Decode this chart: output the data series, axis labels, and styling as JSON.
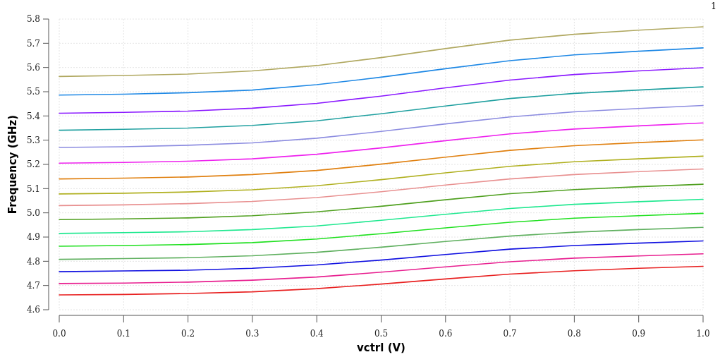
{
  "chart_data": {
    "type": "line",
    "xlabel": "vctrl  (V)",
    "ylabel": "Frequency  (GHz)",
    "annotations": [
      "1"
    ],
    "x": [
      0,
      0.1,
      0.2,
      0.3,
      0.4,
      0.5,
      0.6,
      0.7,
      0.8,
      0.9,
      1.0
    ],
    "xlim": [
      0,
      1
    ],
    "xticks": [
      {
        "value": 0,
        "label": "0.0"
      },
      0.1,
      0.2,
      0.3,
      0.4,
      0.5,
      0.6,
      0.7,
      0.8,
      0.9,
      {
        "value": 1,
        "label": "1.0"
      }
    ],
    "ylim": [
      4.6,
      5.8
    ],
    "yticks": [
      4.6,
      4.7,
      4.8,
      4.9,
      {
        "value": 5,
        "label": "5.0"
      },
      5.1,
      5.2,
      5.3,
      5.4,
      5.5,
      5.6,
      5.7,
      5.8
    ],
    "grid": true,
    "line_style": "solid",
    "series": [
      {
        "color": "#b0a860",
        "values": [
          5.563,
          5.567,
          5.573,
          5.586,
          5.608,
          5.641,
          5.678,
          5.713,
          5.737,
          5.754,
          5.768
        ]
      },
      {
        "color": "#1e88e5",
        "values": [
          5.486,
          5.49,
          5.496,
          5.507,
          5.529,
          5.56,
          5.595,
          5.628,
          5.652,
          5.667,
          5.681
        ]
      },
      {
        "color": "#8b1aff",
        "values": [
          5.411,
          5.415,
          5.42,
          5.432,
          5.452,
          5.482,
          5.516,
          5.548,
          5.571,
          5.586,
          5.599
        ]
      },
      {
        "color": "#20a0a0",
        "values": [
          5.341,
          5.345,
          5.35,
          5.361,
          5.38,
          5.409,
          5.441,
          5.472,
          5.493,
          5.507,
          5.52
        ]
      },
      {
        "color": "#8c8ce0",
        "values": [
          5.27,
          5.273,
          5.279,
          5.289,
          5.308,
          5.336,
          5.367,
          5.396,
          5.417,
          5.431,
          5.443
        ]
      },
      {
        "color": "#ee22ee",
        "values": [
          5.205,
          5.208,
          5.213,
          5.223,
          5.242,
          5.268,
          5.298,
          5.326,
          5.346,
          5.359,
          5.371
        ]
      },
      {
        "color": "#e08010",
        "values": [
          5.14,
          5.143,
          5.148,
          5.158,
          5.175,
          5.201,
          5.23,
          5.258,
          5.277,
          5.29,
          5.301
        ]
      },
      {
        "color": "#b0b020",
        "values": [
          5.078,
          5.081,
          5.086,
          5.095,
          5.112,
          5.137,
          5.165,
          5.192,
          5.211,
          5.223,
          5.234
        ]
      },
      {
        "color": "#e89090",
        "values": [
          5.03,
          5.033,
          5.038,
          5.047,
          5.063,
          5.087,
          5.115,
          5.14,
          5.158,
          5.17,
          5.181
        ]
      },
      {
        "color": "#50a020",
        "values": [
          4.972,
          4.975,
          4.979,
          4.988,
          5.004,
          5.027,
          5.054,
          5.079,
          5.096,
          5.108,
          5.118
        ]
      },
      {
        "color": "#20e890",
        "values": [
          4.915,
          4.918,
          4.922,
          4.931,
          4.946,
          4.969,
          4.994,
          5.018,
          5.035,
          5.046,
          5.056
        ]
      },
      {
        "color": "#20e020",
        "values": [
          4.862,
          4.865,
          4.869,
          4.877,
          4.892,
          4.914,
          4.938,
          4.961,
          4.978,
          4.988,
          4.998
        ]
      },
      {
        "color": "#60b060",
        "values": [
          4.808,
          4.811,
          4.815,
          4.823,
          4.837,
          4.858,
          4.882,
          4.904,
          4.92,
          4.931,
          4.94
        ]
      },
      {
        "color": "#1010e0",
        "values": [
          4.757,
          4.76,
          4.763,
          4.771,
          4.785,
          4.805,
          4.828,
          4.85,
          4.865,
          4.875,
          4.884
        ]
      },
      {
        "color": "#e82090",
        "values": [
          4.708,
          4.71,
          4.714,
          4.722,
          4.735,
          4.755,
          4.777,
          4.798,
          4.813,
          4.822,
          4.831
        ]
      },
      {
        "color": "#e82020",
        "values": [
          4.661,
          4.663,
          4.667,
          4.674,
          4.687,
          4.706,
          4.727,
          4.747,
          4.761,
          4.771,
          4.779
        ]
      }
    ]
  }
}
